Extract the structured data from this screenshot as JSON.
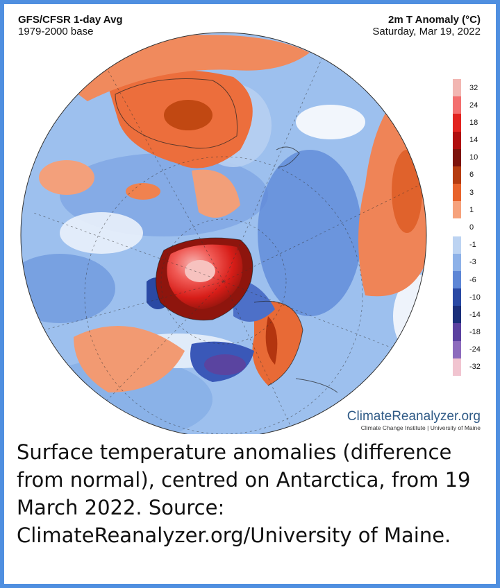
{
  "header": {
    "model": "GFS/CFSR 1-day Avg",
    "base": "1979-2000 base",
    "variable": "2m T Anomaly (°C)",
    "date": "Saturday, Mar 19, 2022"
  },
  "colorbar": {
    "labels": [
      "32",
      "24",
      "18",
      "14",
      "10",
      "6",
      "3",
      "1",
      "0",
      "-1",
      "-3",
      "-6",
      "-10",
      "-14",
      "-18",
      "-24",
      "-32"
    ],
    "colors": [
      "#f2b6b2",
      "#f36f6f",
      "#e2231f",
      "#b00f0f",
      "#7d140c",
      "#b53c10",
      "#e8632b",
      "#f6a27c",
      "#ffffff",
      "#bcd3f2",
      "#8db1e8",
      "#5d86d6",
      "#2a49a4",
      "#1b2f7a",
      "#5b41a0",
      "#8d6bbd",
      "#f1c4d0"
    ]
  },
  "brand": {
    "name": "ClimateReanalyzer.org",
    "sub": "Climate Change Institute | University of Maine"
  },
  "caption": "Surface temperature anomalies (difference from normal), centred on Antarctica, from 19 March 2022. Source: ClimateReanalyzer.org/University of Maine."
}
